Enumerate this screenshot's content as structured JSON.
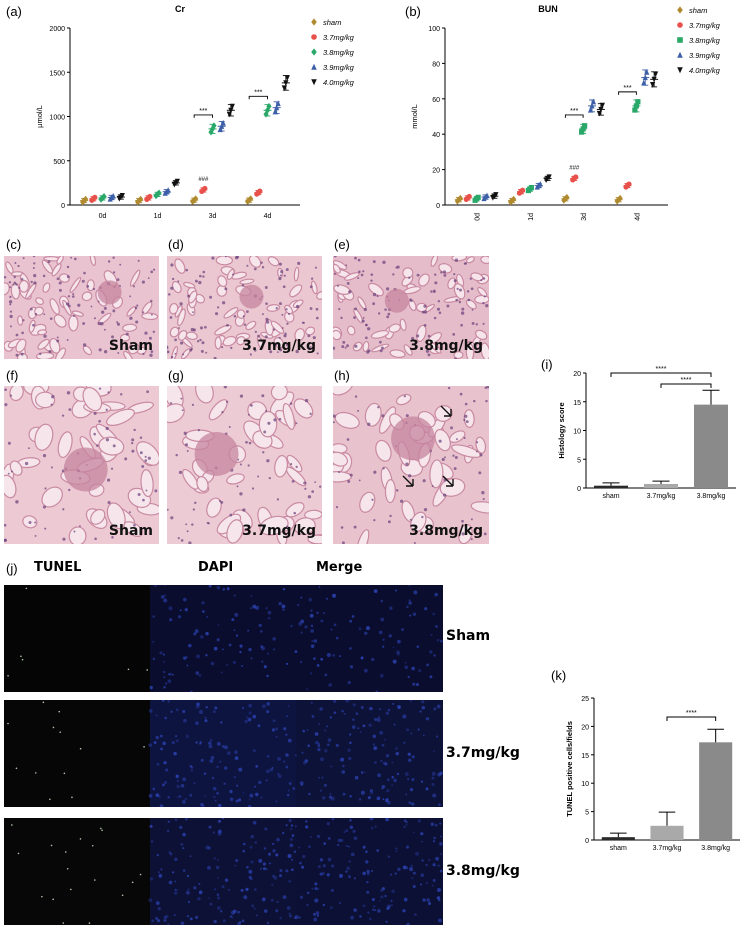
{
  "figure": {
    "panels": {
      "a": "(a)",
      "b": "(b)",
      "c": "(c)",
      "d": "(d)",
      "e": "(e)",
      "f": "(f)",
      "g": "(g)",
      "h": "(h)",
      "i": "(i)",
      "j": "(j)",
      "k": "(k)"
    },
    "histology_labels": {
      "c": "Sham",
      "d": "3.7mg/kg",
      "e": "3.8mg/kg",
      "f": "Sham",
      "g": "3.7mg/kg",
      "h": "3.8mg/kg"
    },
    "tunel": {
      "columns": [
        "TUNEL",
        "DAPI",
        "Merge"
      ],
      "rows": [
        "Sham",
        "3.7mg/kg",
        "3.8mg/kg"
      ]
    },
    "colors": {
      "sham": "#b08a2e",
      "g37": "#e8504a",
      "g38": "#2aa86a",
      "g39": "#3d5fa8",
      "g40": "#111111",
      "bar_dark": "#2a2a2a",
      "bar_light": "#a9a9a9",
      "bar_mid": "#8a8a8a"
    }
  },
  "chart_data": [
    {
      "id": "a",
      "type": "scatter",
      "title": "Cr",
      "ylabel": "μmol/L",
      "ylim": [
        0,
        2000
      ],
      "yticks": [
        "0",
        "500",
        "1000",
        "1500",
        "2000"
      ],
      "categories": [
        "0d",
        "1d",
        "3d",
        "4d"
      ],
      "series": [
        {
          "name": "sham",
          "marker": "diamond",
          "values": [
            50,
            50,
            55,
            55
          ]
        },
        {
          "name": "3.7mg/kg",
          "marker": "circle",
          "values": [
            70,
            80,
            170,
            140
          ]
        },
        {
          "name": "3.8mg/kg",
          "marker": "diamond",
          "values": [
            80,
            120,
            860,
            1070
          ]
        },
        {
          "name": "3.9mg/kg",
          "marker": "triangle",
          "values": [
            85,
            150,
            890,
            1100
          ]
        },
        {
          "name": "4.0mg/kg",
          "marker": "triangle-down",
          "values": [
            90,
            250,
            1070,
            1380
          ]
        }
      ],
      "annotations": [
        {
          "text": "***",
          "category": "3d"
        },
        {
          "text": "***",
          "category": "4d"
        },
        {
          "text": "###",
          "category": "3d"
        }
      ]
    },
    {
      "id": "b",
      "type": "scatter",
      "title": "BUN",
      "ylabel": "mmol/L",
      "ylim": [
        0,
        100
      ],
      "yticks": [
        "0",
        "20",
        "40",
        "60",
        "80",
        "100"
      ],
      "categories": [
        "0d",
        "1d",
        "3d",
        "4d"
      ],
      "series": [
        {
          "name": "sham",
          "marker": "diamond",
          "values": [
            3,
            2.5,
            3.5,
            3
          ]
        },
        {
          "name": "3.7mg/kg",
          "marker": "circle",
          "values": [
            4,
            7.5,
            15,
            11
          ]
        },
        {
          "name": "3.8mg/kg",
          "marker": "square",
          "values": [
            3.5,
            9,
            43,
            56
          ]
        },
        {
          "name": "3.9mg/kg",
          "marker": "triangle",
          "values": [
            4.5,
            11,
            56,
            72
          ]
        },
        {
          "name": "4.0mg/kg",
          "marker": "triangle-down",
          "values": [
            5,
            15,
            54,
            71
          ]
        }
      ],
      "annotations": [
        {
          "text": "***",
          "category": "3d"
        },
        {
          "text": "***",
          "category": "4d"
        },
        {
          "text": "###",
          "category": "3d"
        }
      ]
    },
    {
      "id": "i",
      "type": "bar",
      "ylabel": "Histology score",
      "ylim": [
        0,
        20
      ],
      "yticks": [
        "0",
        "5",
        "10",
        "15",
        "20"
      ],
      "categories": [
        "sham",
        "3.7mg/kg",
        "3.8mg/kg"
      ],
      "values": [
        0.4,
        0.7,
        14.5
      ],
      "errors": [
        0.5,
        0.5,
        2.5
      ],
      "annotations": [
        {
          "text": "****",
          "from": "sham",
          "to": "3.8mg/kg"
        },
        {
          "text": "****",
          "from": "3.7mg/kg",
          "to": "3.8mg/kg"
        }
      ]
    },
    {
      "id": "k",
      "type": "bar",
      "ylabel": "TUNEL positive cells/fields",
      "ylim": [
        0,
        25
      ],
      "yticks": [
        "0",
        "5",
        "10",
        "15",
        "20",
        "25"
      ],
      "categories": [
        "sham",
        "3.7mg/kg",
        "3.8mg/kg"
      ],
      "values": [
        0.5,
        2.5,
        17.2
      ],
      "errors": [
        0.7,
        2.4,
        2.3
      ],
      "annotations": [
        {
          "text": "****",
          "from": "3.7mg/kg",
          "to": "3.8mg/kg"
        }
      ]
    }
  ]
}
